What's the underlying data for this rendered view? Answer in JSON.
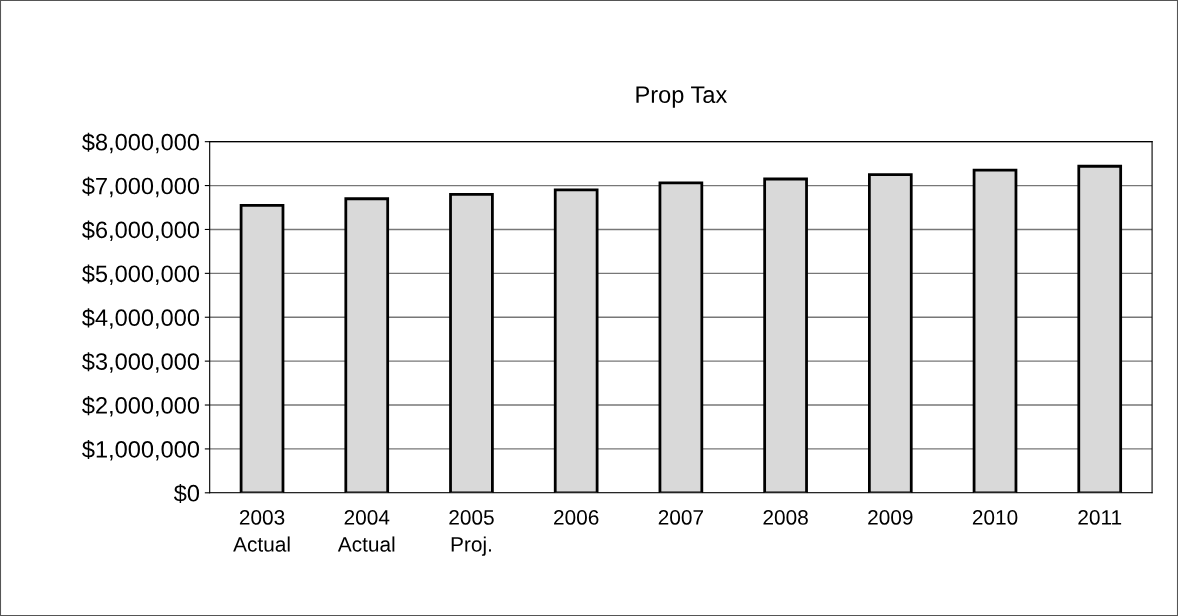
{
  "chart_data": {
    "type": "bar",
    "title": "Prop Tax",
    "categories": [
      "2003\nActual",
      "2004\nActual",
      "2005\nProj.",
      "2006",
      "2007",
      "2008",
      "2009",
      "2010",
      "2011"
    ],
    "values": [
      6550000,
      6700000,
      6800000,
      6900000,
      7060000,
      7150000,
      7250000,
      7350000,
      7440000
    ],
    "color": "#d9d9d9",
    "ylim": [
      0,
      8000000
    ],
    "yticks": [
      {
        "value": 0,
        "label": "$0"
      },
      {
        "value": 1000000,
        "label": "$1,000,000"
      },
      {
        "value": 2000000,
        "label": "$2,000,000"
      },
      {
        "value": 3000000,
        "label": "$3,000,000"
      },
      {
        "value": 4000000,
        "label": "$4,000,000"
      },
      {
        "value": 5000000,
        "label": "$5,000,000"
      },
      {
        "value": 6000000,
        "label": "$6,000,000"
      },
      {
        "value": 7000000,
        "label": "$7,000,000"
      },
      {
        "value": 8000000,
        "label": "$8,000,000"
      }
    ],
    "grid": "y"
  }
}
